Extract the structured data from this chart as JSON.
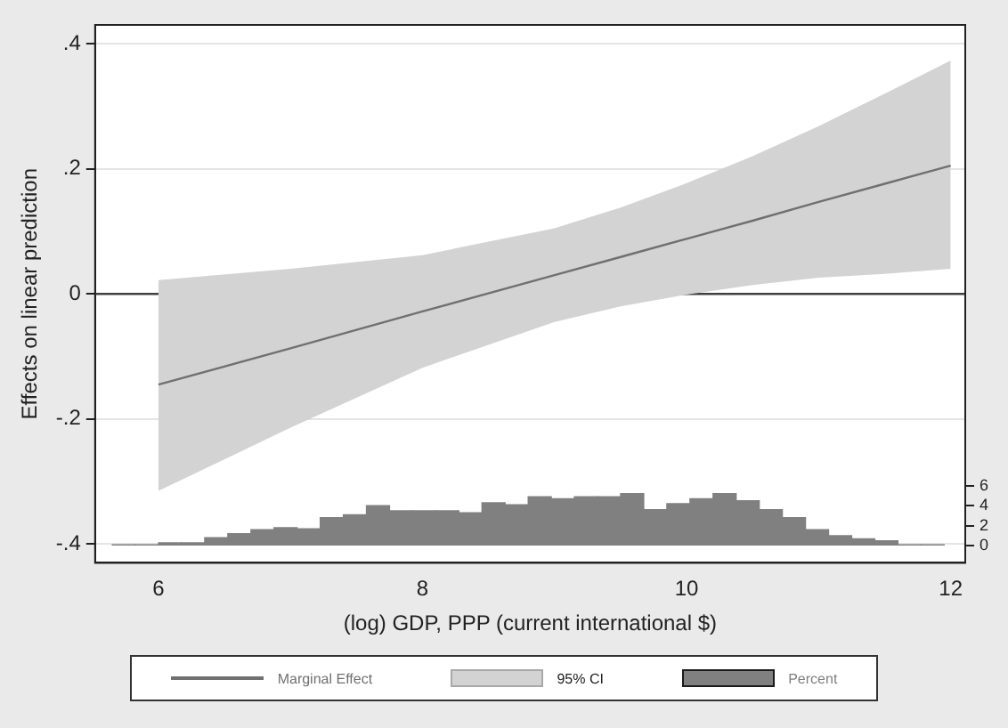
{
  "chart_data": {
    "type": "line",
    "xlabel": "(log) GDP, PPP (current international $)",
    "ylabel": "Effects on linear prediction",
    "xlim": [
      5.52,
      12.11
    ],
    "xticks": [
      6,
      8,
      10,
      12
    ],
    "ylim": [
      -0.43,
      0.43
    ],
    "yticks": [
      {
        "value": -0.4,
        "label": "-.4"
      },
      {
        "value": -0.2,
        "label": "-.2"
      },
      0,
      {
        "value": 0.2,
        "label": ".2"
      },
      {
        "value": 0.4,
        "label": ".4"
      }
    ],
    "y2lim": [
      -1.7,
      52
    ],
    "y2ticks": [
      0,
      2,
      4,
      6
    ],
    "grid": "y",
    "legend": "bottom",
    "marker": "none",
    "line_style": "solid",
    "annotations": [
      "95% CI"
    ],
    "ref_lines": [
      {
        "axis": "y",
        "value": 0,
        "color": "#404040"
      }
    ],
    "series": [
      {
        "name": "Marginal Effect",
        "color": "#707070",
        "x": [
          6,
          7,
          8,
          9,
          9.5,
          10,
          10.5,
          11,
          11.5,
          12
        ],
        "values": [
          -0.145,
          -0.087,
          -0.028,
          0.03,
          0.059,
          0.088,
          0.117,
          0.147,
          0.176,
          0.205
        ],
        "lower": [
          -0.315,
          -0.214,
          -0.118,
          -0.045,
          -0.02,
          -0.001,
          0.014,
          0.026,
          0.032,
          0.04
        ],
        "upper": [
          0.022,
          0.04,
          0.062,
          0.105,
          0.138,
          0.177,
          0.22,
          0.268,
          0.32,
          0.373
        ]
      },
      {
        "name": "Percent",
        "type": "histogram",
        "axis": "y2",
        "color": "#808080",
        "bins": [
          5.65,
          5.825,
          6,
          6.175,
          6.35,
          6.525,
          6.7,
          6.875,
          7.05,
          7.225,
          7.4,
          7.575,
          7.75,
          7.925,
          8.1,
          8.275,
          8.45,
          8.625,
          8.8,
          8.975,
          9.15,
          9.325,
          9.5,
          9.675,
          9.85,
          10.025,
          10.2,
          10.375,
          10.55,
          10.725,
          10.9,
          11.075,
          11.25,
          11.425,
          11.6,
          11.775,
          11.95
        ],
        "values": [
          0.1,
          0.1,
          0.3,
          0.3,
          0.8,
          1.2,
          1.6,
          1.8,
          1.7,
          2.8,
          3.1,
          4.0,
          3.5,
          3.5,
          3.5,
          3.3,
          4.3,
          4.1,
          4.9,
          4.7,
          4.9,
          4.9,
          5.2,
          3.6,
          4.2,
          4.7,
          5.2,
          4.5,
          3.6,
          2.8,
          1.6,
          1.0,
          0.7,
          0.5,
          0.1,
          0.1
        ]
      }
    ]
  }
}
